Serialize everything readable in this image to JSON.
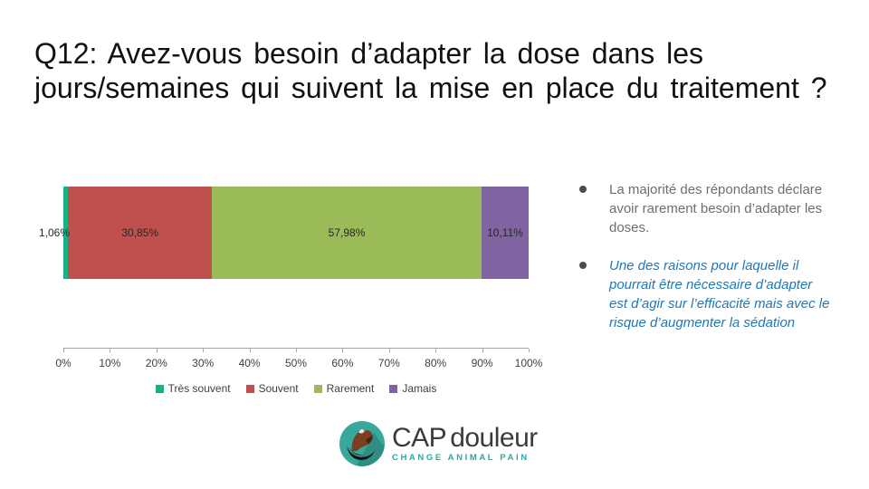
{
  "slide": {
    "title_line1": "Q12: Avez-vous besoin d’adapter la dose dans les",
    "title_line2": "jours/semaines qui suivent la mise en place du traitement ?"
  },
  "chart_data": {
    "type": "bar",
    "orientation": "horizontal-stacked",
    "unit": "%",
    "categories": [
      "Q12"
    ],
    "series": [
      {
        "name": "Très souvent",
        "values": [
          1.06
        ],
        "label": "1,06%",
        "color": "#17b186"
      },
      {
        "name": "Souvent",
        "values": [
          30.85
        ],
        "label": "30,85%",
        "color": "#c0504d"
      },
      {
        "name": "Rarement",
        "values": [
          57.98
        ],
        "label": "57,98%",
        "color": "#9bbb59"
      },
      {
        "name": "Jamais",
        "values": [
          10.11
        ],
        "label": "10,11%",
        "color": "#8064a2"
      }
    ],
    "xlim": [
      0,
      100
    ],
    "x_ticks": [
      "0%",
      "10%",
      "20%",
      "30%",
      "40%",
      "50%",
      "60%",
      "70%",
      "80%",
      "90%",
      "100%"
    ],
    "grid": false,
    "legend_position": "bottom"
  },
  "notes": {
    "bullet1_lines": [
      "La majorité des répondants déclare",
      "avoir rarement besoin d’adapter les",
      "doses."
    ],
    "bullet2_lines": [
      "Une des raisons pour laquelle il",
      "pourrait être nécessaire d’adapter",
      "est d’agir sur l’efficacité mais avec le",
      "risque d’augmenter la sédation"
    ]
  },
  "logo": {
    "name_part1": "CAP",
    "name_part2": "douleur",
    "tagline": "CHANGE ANIMAL PAIN",
    "colors": {
      "circle": "#38a89d",
      "name_text": "#3b3b3b",
      "tagline_text": "#2ea79e"
    }
  }
}
